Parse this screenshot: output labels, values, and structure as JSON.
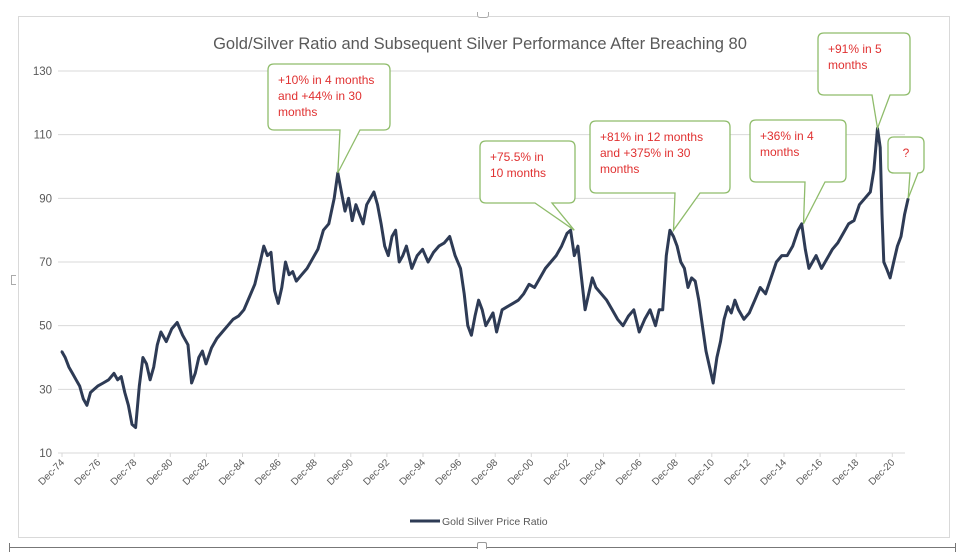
{
  "chart_data": {
    "type": "line",
    "title": "Gold/Silver Ratio and Subsequent Silver Performance After Breaching 80",
    "xlabel": "",
    "ylabel": "",
    "ylim": [
      10,
      130
    ],
    "yticks": [
      10,
      30,
      50,
      70,
      90,
      110,
      130
    ],
    "xticks": [
      "Dec-74",
      "Dec-76",
      "Dec-78",
      "Dec-80",
      "Dec-82",
      "Dec-84",
      "Dec-86",
      "Dec-88",
      "Dec-90",
      "Dec-92",
      "Dec-94",
      "Dec-96",
      "Dec-98",
      "Dec-00",
      "Dec-02",
      "Dec-04",
      "Dec-06",
      "Dec-08",
      "Dec-10",
      "Dec-12",
      "Dec-14",
      "Dec-16",
      "Dec-18",
      "Dec-20"
    ],
    "xlim_years": [
      1974.92,
      2021.8
    ],
    "grid": true,
    "legend_position": "bottom",
    "series": [
      {
        "name": "Gold Silver Price Ratio",
        "color": "#2e3b55",
        "x": [
          1974.9,
          1975.1,
          1975.3,
          1975.5,
          1975.7,
          1975.9,
          1976.1,
          1976.3,
          1976.5,
          1976.7,
          1976.9,
          1977.2,
          1977.5,
          1977.8,
          1978.0,
          1978.2,
          1978.4,
          1978.6,
          1978.8,
          1979.0,
          1979.2,
          1979.4,
          1979.6,
          1979.8,
          1980.0,
          1980.2,
          1980.4,
          1980.7,
          1981.0,
          1981.3,
          1981.6,
          1981.9,
          1982.1,
          1982.3,
          1982.5,
          1982.7,
          1982.9,
          1983.2,
          1983.5,
          1983.8,
          1984.1,
          1984.4,
          1984.7,
          1985.0,
          1985.3,
          1985.6,
          1985.9,
          1986.1,
          1986.3,
          1986.5,
          1986.7,
          1986.9,
          1987.1,
          1987.3,
          1987.5,
          1987.7,
          1987.9,
          1988.2,
          1988.5,
          1988.8,
          1989.1,
          1989.4,
          1989.7,
          1990.0,
          1990.2,
          1990.4,
          1990.6,
          1990.8,
          1991.0,
          1991.2,
          1991.4,
          1991.6,
          1991.8,
          1992.0,
          1992.2,
          1992.4,
          1992.6,
          1992.8,
          1993.0,
          1993.2,
          1993.4,
          1993.6,
          1993.8,
          1994.0,
          1994.3,
          1994.6,
          1994.9,
          1995.2,
          1995.5,
          1995.8,
          1996.1,
          1996.4,
          1996.7,
          1997.0,
          1997.2,
          1997.4,
          1997.6,
          1997.8,
          1998.0,
          1998.2,
          1998.4,
          1998.6,
          1998.8,
          1999.0,
          1999.3,
          1999.6,
          1999.9,
          2000.2,
          2000.5,
          2000.8,
          2001.1,
          2001.4,
          2001.7,
          2002.0,
          2002.3,
          2002.6,
          2002.9,
          2003.1,
          2003.3,
          2003.5,
          2003.7,
          2003.9,
          2004.1,
          2004.3,
          2004.5,
          2004.8,
          2005.1,
          2005.4,
          2005.7,
          2006.0,
          2006.3,
          2006.6,
          2006.9,
          2007.2,
          2007.5,
          2007.8,
          2008.0,
          2008.2,
          2008.4,
          2008.6,
          2008.8,
          2009.0,
          2009.2,
          2009.4,
          2009.6,
          2009.8,
          2010.0,
          2010.2,
          2010.4,
          2010.6,
          2010.8,
          2011.0,
          2011.2,
          2011.4,
          2011.6,
          2011.8,
          2012.0,
          2012.2,
          2012.4,
          2012.7,
          2013.0,
          2013.3,
          2013.6,
          2013.9,
          2014.2,
          2014.5,
          2014.8,
          2015.1,
          2015.4,
          2015.7,
          2015.9,
          2016.1,
          2016.3,
          2016.5,
          2016.7,
          2017.0,
          2017.3,
          2017.6,
          2017.9,
          2018.2,
          2018.5,
          2018.8,
          2019.1,
          2019.4,
          2019.7,
          2019.9,
          2020.1,
          2020.25,
          2020.35,
          2020.45,
          2020.6,
          2020.8,
          2021.0,
          2021.2,
          2021.4,
          2021.6,
          2021.8
        ],
        "values": [
          42,
          40,
          37,
          35,
          33,
          31,
          27,
          25,
          29,
          30,
          31,
          32,
          33,
          35,
          33,
          34,
          29,
          25,
          19,
          18,
          31,
          40,
          38,
          33,
          37,
          44,
          48,
          45,
          49,
          51,
          47,
          44,
          32,
          35,
          40,
          42,
          38,
          43,
          46,
          48,
          50,
          52,
          53,
          55,
          59,
          63,
          70,
          75,
          72,
          73,
          61,
          57,
          62,
          70,
          66,
          67,
          64,
          66,
          68,
          71,
          74,
          80,
          82,
          90,
          98,
          92,
          86,
          90,
          83,
          88,
          85,
          82,
          88,
          90,
          92,
          88,
          82,
          75,
          72,
          78,
          80,
          70,
          72,
          75,
          68,
          72,
          74,
          70,
          73,
          75,
          76,
          78,
          72,
          68,
          60,
          50,
          47,
          53,
          58,
          55,
          50,
          52,
          54,
          48,
          55,
          56,
          57,
          58,
          60,
          63,
          62,
          65,
          68,
          70,
          72,
          75,
          79,
          80,
          72,
          75,
          65,
          55,
          60,
          65,
          62,
          60,
          58,
          55,
          52,
          50,
          53,
          55,
          48,
          52,
          55,
          50,
          55,
          55,
          72,
          80,
          78,
          75,
          70,
          68,
          62,
          65,
          64,
          58,
          50,
          42,
          37,
          32,
          40,
          45,
          52,
          56,
          54,
          58,
          55,
          52,
          54,
          58,
          62,
          60,
          65,
          70,
          72,
          72,
          75,
          80,
          82,
          74,
          68,
          70,
          72,
          68,
          71,
          74,
          76,
          79,
          82,
          83,
          88,
          90,
          92,
          99,
          112,
          106,
          85,
          70,
          68,
          65,
          70,
          75,
          78,
          85,
          90
        ]
      }
    ],
    "annotations": [
      {
        "lines": [
          "+10% in 4 months",
          "and +44% in 30",
          "months"
        ],
        "target_year": 1990.2,
        "target_value": 98
      },
      {
        "lines": [
          "+75.5% in",
          "10 months"
        ],
        "target_year": 2003.3,
        "target_value": 80
      },
      {
        "lines": [
          "+81% in 12 months",
          "and +375% in 30",
          "months"
        ],
        "target_year": 2008.8,
        "target_value": 80
      },
      {
        "lines": [
          "+36% in 4",
          "months"
        ],
        "target_year": 2016.0,
        "target_value": 82
      },
      {
        "lines": [
          "+91% in 5",
          "months"
        ],
        "target_year": 2020.1,
        "target_value": 112
      },
      {
        "lines": [
          "?"
        ],
        "target_year": 2021.8,
        "target_value": 90
      }
    ],
    "annotation_colors": {
      "border": "#8fbc6b",
      "text": "#e03131"
    }
  }
}
